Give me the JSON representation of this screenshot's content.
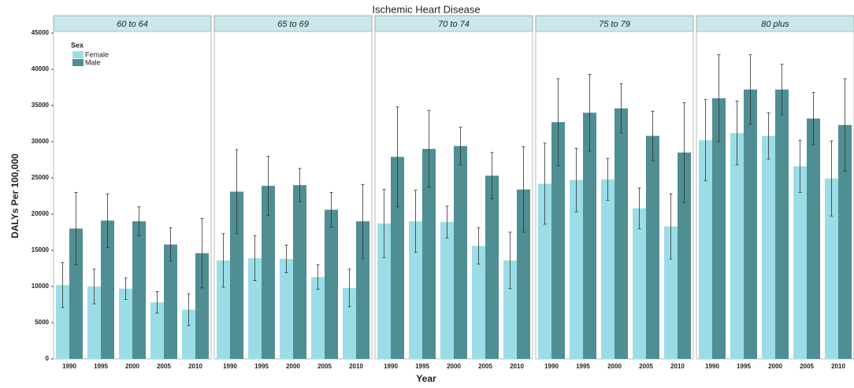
{
  "chart_data": {
    "type": "bar",
    "title": "Ischemic Heart Disease",
    "x_label": "Year",
    "y_label": "DALYs Per 100,000",
    "legend_title": "Sex",
    "legend_position": "top-left",
    "ylim": [
      0,
      45000
    ],
    "yticks": [
      0,
      5000,
      10000,
      15000,
      20000,
      25000,
      30000,
      35000,
      40000,
      45000
    ],
    "categories": [
      "1990",
      "1995",
      "2000",
      "2005",
      "2010"
    ],
    "series": [
      {
        "name": "Female",
        "color": "#9bdde6"
      },
      {
        "name": "Male",
        "color": "#4f8e92"
      }
    ],
    "facets": [
      {
        "title": "60 to 64",
        "series": [
          {
            "values": [
              10200,
              10000,
              9700,
              7800,
              6800
            ],
            "errors": [
              3100,
              2400,
              1500,
              1500,
              2200
            ]
          },
          {
            "values": [
              18000,
              19100,
              19000,
              15800,
              14600
            ],
            "errors": [
              5000,
              3700,
              2000,
              2300,
              4800
            ]
          }
        ]
      },
      {
        "title": "65 to 69",
        "series": [
          {
            "values": [
              13600,
              13900,
              13800,
              11300,
              9800
            ],
            "errors": [
              3700,
              3100,
              1900,
              1700,
              2600
            ]
          },
          {
            "values": [
              23100,
              23900,
              24000,
              20600,
              19000
            ],
            "errors": [
              5800,
              4100,
              2300,
              2400,
              5100
            ]
          }
        ]
      },
      {
        "title": "70 to 74",
        "series": [
          {
            "values": [
              18700,
              19000,
              18900,
              15600,
              13600
            ],
            "errors": [
              4700,
              4300,
              2200,
              2500,
              3900
            ]
          },
          {
            "values": [
              27900,
              29000,
              29400,
              25300,
              23400
            ],
            "errors": [
              6900,
              5300,
              2600,
              3200,
              5900
            ]
          }
        ]
      },
      {
        "title": "75 to 79",
        "series": [
          {
            "values": [
              24200,
              24700,
              24800,
              20800,
              18300
            ],
            "errors": [
              5600,
              4400,
              2900,
              2800,
              4500
            ]
          },
          {
            "values": [
              32700,
              34000,
              34600,
              30800,
              28500
            ],
            "errors": [
              6000,
              5300,
              3400,
              3400,
              6900
            ]
          }
        ]
      },
      {
        "title": "80 plus",
        "series": [
          {
            "values": [
              30200,
              31200,
              30800,
              26600,
              24900
            ],
            "errors": [
              5600,
              4400,
              3200,
              3600,
              5200
            ]
          },
          {
            "values": [
              36000,
              37200,
              37200,
              33200,
              32300
            ],
            "errors": [
              6000,
              4800,
              3500,
              3600,
              6400
            ]
          }
        ]
      }
    ]
  }
}
